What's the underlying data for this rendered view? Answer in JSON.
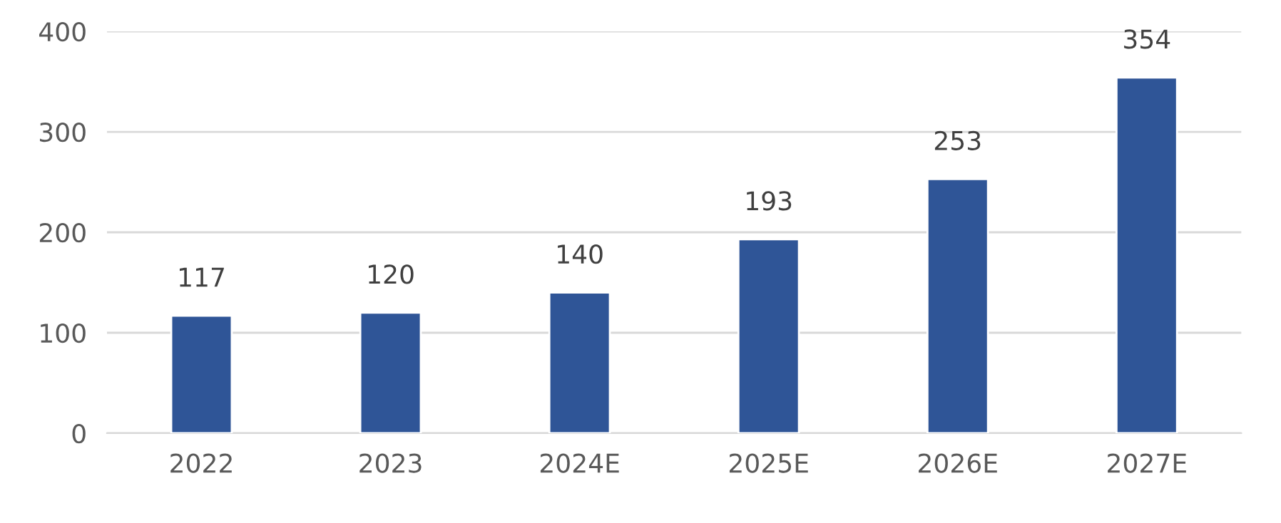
{
  "chart_data": {
    "type": "bar",
    "categories": [
      "2022",
      "2023",
      "2024E",
      "2025E",
      "2026E",
      "2027E"
    ],
    "values": [
      117,
      120,
      140,
      193,
      253,
      354
    ],
    "color": "#2f5597",
    "data_labels": true,
    "ylim": [
      0,
      400
    ],
    "yticks": [
      0,
      100,
      200,
      300,
      400
    ],
    "grid": "y",
    "legend": false
  }
}
